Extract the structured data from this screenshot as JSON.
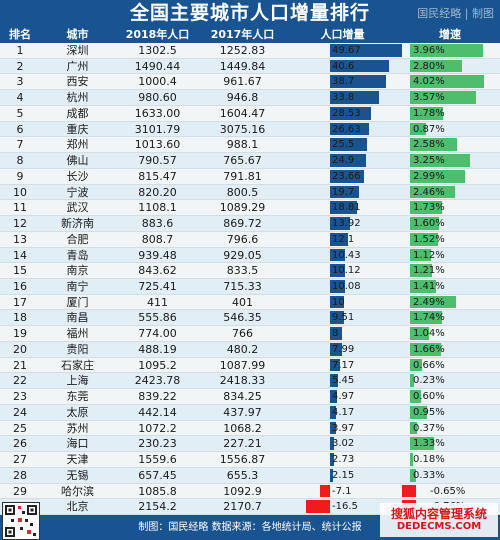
{
  "title": "全国主要城市人口增量排行",
  "brand": "国民经略 | 制图",
  "headers": [
    "排名",
    "城市",
    "2018年人口",
    "2017年人口",
    "人口增量",
    "增速"
  ],
  "footer": "制图：国民经略 数据来源：各地统计局、统计公报",
  "watermark": {
    "line1": "搜狐内容管理系统",
    "line2": "DEDECMS.COM"
  },
  "colors": {
    "header": "#1a5490",
    "increase_bar": "#1a5490",
    "growth_bar": "#4cbe6c",
    "negative_bar": "#ee1c1c"
  },
  "chart_data": {
    "type": "table",
    "columns": [
      "排名",
      "城市",
      "2018年人口",
      "2017年人口",
      "人口增量",
      "增速"
    ],
    "rows": [
      {
        "rank": "1",
        "city": "深圳",
        "p2018": "1302.5",
        "p2017": "1252.83",
        "inc": "49.67",
        "inc_val": 49.67,
        "growth": "3.96%",
        "growth_val": 3.96
      },
      {
        "rank": "2",
        "city": "广州",
        "p2018": "1490.44",
        "p2017": "1449.84",
        "inc": "40.6",
        "inc_val": 40.6,
        "growth": "2.80%",
        "growth_val": 2.8
      },
      {
        "rank": "3",
        "city": "西安",
        "p2018": "1000.4",
        "p2017": "961.67",
        "inc": "38.7",
        "inc_val": 38.7,
        "growth": "4.02%",
        "growth_val": 4.02
      },
      {
        "rank": "4",
        "city": "杭州",
        "p2018": "980.60",
        "p2017": "946.8",
        "inc": "33.8",
        "inc_val": 33.8,
        "growth": "3.57%",
        "growth_val": 3.57
      },
      {
        "rank": "5",
        "city": "成都",
        "p2018": "1633.00",
        "p2017": "1604.47",
        "inc": "28.53",
        "inc_val": 28.53,
        "growth": "1.78%",
        "growth_val": 1.78
      },
      {
        "rank": "6",
        "city": "重庆",
        "p2018": "3101.79",
        "p2017": "3075.16",
        "inc": "26.63",
        "inc_val": 26.63,
        "growth": "0.87%",
        "growth_val": 0.87
      },
      {
        "rank": "7",
        "city": "郑州",
        "p2018": "1013.60",
        "p2017": "988.1",
        "inc": "25.5",
        "inc_val": 25.5,
        "growth": "2.58%",
        "growth_val": 2.58
      },
      {
        "rank": "8",
        "city": "佛山",
        "p2018": "790.57",
        "p2017": "765.67",
        "inc": "24.9",
        "inc_val": 24.9,
        "growth": "3.25%",
        "growth_val": 3.25
      },
      {
        "rank": "9",
        "city": "长沙",
        "p2018": "815.47",
        "p2017": "791.81",
        "inc": "23.66",
        "inc_val": 23.66,
        "growth": "2.99%",
        "growth_val": 2.99
      },
      {
        "rank": "10",
        "city": "宁波",
        "p2018": "820.20",
        "p2017": "800.5",
        "inc": "19.7",
        "inc_val": 19.7,
        "growth": "2.46%",
        "growth_val": 2.46
      },
      {
        "rank": "11",
        "city": "武汉",
        "p2018": "1108.1",
        "p2017": "1089.29",
        "inc": "18.81",
        "inc_val": 18.81,
        "growth": "1.73%",
        "growth_val": 1.73
      },
      {
        "rank": "12",
        "city": "新济南",
        "p2018": "883.6",
        "p2017": "869.72",
        "inc": "13.92",
        "inc_val": 13.92,
        "growth": "1.60%",
        "growth_val": 1.6
      },
      {
        "rank": "13",
        "city": "合肥",
        "p2018": "808.7",
        "p2017": "796.6",
        "inc": "12.1",
        "inc_val": 12.1,
        "growth": "1.52%",
        "growth_val": 1.52
      },
      {
        "rank": "14",
        "city": "青岛",
        "p2018": "939.48",
        "p2017": "929.05",
        "inc": "10.43",
        "inc_val": 10.43,
        "growth": "1.12%",
        "growth_val": 1.12
      },
      {
        "rank": "15",
        "city": "南京",
        "p2018": "843.62",
        "p2017": "833.5",
        "inc": "10.12",
        "inc_val": 10.12,
        "growth": "1.21%",
        "growth_val": 1.21
      },
      {
        "rank": "16",
        "city": "南宁",
        "p2018": "725.41",
        "p2017": "715.33",
        "inc": "10.08",
        "inc_val": 10.08,
        "growth": "1.41%",
        "growth_val": 1.41
      },
      {
        "rank": "17",
        "city": "厦门",
        "p2018": "411",
        "p2017": "401",
        "inc": "10",
        "inc_val": 10,
        "growth": "2.49%",
        "growth_val": 2.49
      },
      {
        "rank": "18",
        "city": "南昌",
        "p2018": "555.86",
        "p2017": "546.35",
        "inc": "9.51",
        "inc_val": 9.51,
        "growth": "1.74%",
        "growth_val": 1.74
      },
      {
        "rank": "19",
        "city": "福州",
        "p2018": "774.00",
        "p2017": "766",
        "inc": "8",
        "inc_val": 8,
        "growth": "1.04%",
        "growth_val": 1.04
      },
      {
        "rank": "20",
        "city": "贵阳",
        "p2018": "488.19",
        "p2017": "480.2",
        "inc": "7.99",
        "inc_val": 7.99,
        "growth": "1.66%",
        "growth_val": 1.66
      },
      {
        "rank": "21",
        "city": "石家庄",
        "p2018": "1095.2",
        "p2017": "1087.99",
        "inc": "7.17",
        "inc_val": 7.17,
        "growth": "0.66%",
        "growth_val": 0.66
      },
      {
        "rank": "22",
        "city": "上海",
        "p2018": "2423.78",
        "p2017": "2418.33",
        "inc": "5.45",
        "inc_val": 5.45,
        "growth": "0.23%",
        "growth_val": 0.23
      },
      {
        "rank": "23",
        "city": "东莞",
        "p2018": "839.22",
        "p2017": "834.25",
        "inc": "4.97",
        "inc_val": 4.97,
        "growth": "0.60%",
        "growth_val": 0.6
      },
      {
        "rank": "24",
        "city": "太原",
        "p2018": "442.14",
        "p2017": "437.97",
        "inc": "4.17",
        "inc_val": 4.17,
        "growth": "0.95%",
        "growth_val": 0.95
      },
      {
        "rank": "25",
        "city": "苏州",
        "p2018": "1072.2",
        "p2017": "1068.2",
        "inc": "3.97",
        "inc_val": 3.97,
        "growth": "0.37%",
        "growth_val": 0.37
      },
      {
        "rank": "26",
        "city": "海口",
        "p2018": "230.23",
        "p2017": "227.21",
        "inc": "3.02",
        "inc_val": 3.02,
        "growth": "1.33%",
        "growth_val": 1.33
      },
      {
        "rank": "27",
        "city": "天津",
        "p2018": "1559.6",
        "p2017": "1556.87",
        "inc": "2.73",
        "inc_val": 2.73,
        "growth": "0.18%",
        "growth_val": 0.18
      },
      {
        "rank": "28",
        "city": "无锡",
        "p2018": "657.45",
        "p2017": "655.3",
        "inc": "2.15",
        "inc_val": 2.15,
        "growth": "0.33%",
        "growth_val": 0.33
      },
      {
        "rank": "29",
        "city": "哈尔滨",
        "p2018": "1085.8",
        "p2017": "1092.9",
        "inc": "-7.1",
        "inc_val": -7.1,
        "growth": "-0.65%",
        "growth_val": -0.65
      },
      {
        "rank": "30",
        "city": "北京",
        "p2018": "2154.2",
        "p2017": "2170.7",
        "inc": "-16.5",
        "inc_val": -16.5,
        "growth": "-0.76%",
        "growth_val": -0.76
      }
    ]
  }
}
